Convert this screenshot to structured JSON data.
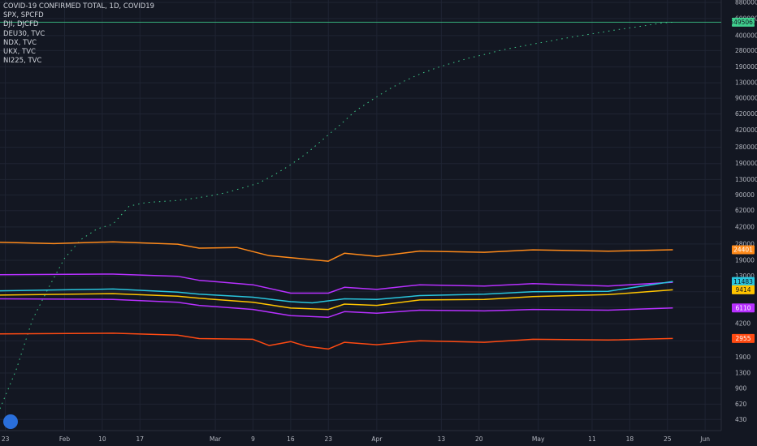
{
  "legend": {
    "items": [
      "COVID-19 CONFIRMED TOTAL, 1D, COVID19",
      "SPX, SPCFD",
      "DJI, DJCFD",
      "DEU30, TVC",
      "NDX, TVC",
      "UKX, TVC",
      "NI225, TVC"
    ]
  },
  "chart_data": {
    "type": "line",
    "title": "COVID-19 CONFIRMED TOTAL, 1D, COVID19",
    "x_range": [
      "2020-01-22",
      "2020-06-04"
    ],
    "x_ticks": [
      "23",
      "Feb",
      "10",
      "17",
      "Mar",
      "9",
      "16",
      "23",
      "Apr",
      "13",
      "20",
      "May",
      "11",
      "18",
      "25",
      "Jun"
    ],
    "y_scale": "log",
    "y_ticks": [
      "8800000",
      "6000000",
      "4000000",
      "2800000",
      "1900000",
      "1300000",
      "900000",
      "620000",
      "420000",
      "280000",
      "190000",
      "130000",
      "90000",
      "62000",
      "42000",
      "28000",
      "19000",
      "13000",
      "9000",
      "6200",
      "4200",
      "2800",
      "1900",
      "1300",
      "900",
      "620",
      "430"
    ],
    "grid": true,
    "horizontal_ref_line": 5495061,
    "series": [
      {
        "name": "COVID-19 CONFIRMED TOTAL, 1D, COVID19",
        "color": "#3fcf8e",
        "style": "dashed",
        "last_label": "5495061",
        "points": [
          [
            "2020-01-22",
            555
          ],
          [
            "2020-01-25",
            1400
          ],
          [
            "2020-01-28",
            4600
          ],
          [
            "2020-01-31",
            9800
          ],
          [
            "2020-02-03",
            20000
          ],
          [
            "2020-02-06",
            31000
          ],
          [
            "2020-02-09",
            40000
          ],
          [
            "2020-02-12",
            45000
          ],
          [
            "2020-02-15",
            69000
          ],
          [
            "2020-02-18",
            75000
          ],
          [
            "2020-02-21",
            77000
          ],
          [
            "2020-02-24",
            79000
          ],
          [
            "2020-02-27",
            83000
          ],
          [
            "2020-03-01",
            88000
          ],
          [
            "2020-03-04",
            95000
          ],
          [
            "2020-03-07",
            106000
          ],
          [
            "2020-03-10",
            119000
          ],
          [
            "2020-03-13",
            146000
          ],
          [
            "2020-03-16",
            185000
          ],
          [
            "2020-03-19",
            243000
          ],
          [
            "2020-03-22",
            337000
          ],
          [
            "2020-03-25",
            468000
          ],
          [
            "2020-03-28",
            663000
          ],
          [
            "2020-03-31",
            858000
          ],
          [
            "2020-04-03",
            1095000
          ],
          [
            "2020-04-06",
            1346000
          ],
          [
            "2020-04-09",
            1600000
          ],
          [
            "2020-04-12",
            1846000
          ],
          [
            "2020-04-15",
            2080000
          ],
          [
            "2020-04-18",
            2330000
          ],
          [
            "2020-04-21",
            2550000
          ],
          [
            "2020-04-24",
            2810000
          ],
          [
            "2020-04-27",
            3040000
          ],
          [
            "2020-04-30",
            3260000
          ],
          [
            "2020-05-03",
            3500000
          ],
          [
            "2020-05-06",
            3750000
          ],
          [
            "2020-05-09",
            4000000
          ],
          [
            "2020-05-12",
            4260000
          ],
          [
            "2020-05-15",
            4540000
          ],
          [
            "2020-05-18",
            4800000
          ],
          [
            "2020-05-21",
            5080000
          ],
          [
            "2020-05-24",
            5400000
          ],
          [
            "2020-05-26",
            5495061
          ]
        ]
      },
      {
        "name": "DJI, DJCFD",
        "color": "#ff8a1a",
        "last_label": "24401",
        "points": [
          [
            "2020-01-22",
            29200
          ],
          [
            "2020-02-01",
            28300
          ],
          [
            "2020-02-12",
            29500
          ],
          [
            "2020-02-24",
            27900
          ],
          [
            "2020-02-28",
            25400
          ],
          [
            "2020-03-06",
            25800
          ],
          [
            "2020-03-12",
            21200
          ],
          [
            "2020-03-16",
            20200
          ],
          [
            "2020-03-23",
            18600
          ],
          [
            "2020-03-26",
            22500
          ],
          [
            "2020-04-01",
            20900
          ],
          [
            "2020-04-09",
            23700
          ],
          [
            "2020-04-21",
            23000
          ],
          [
            "2020-04-30",
            24400
          ],
          [
            "2020-05-14",
            23600
          ],
          [
            "2020-05-26",
            24401
          ]
        ]
      },
      {
        "name": "DEU30, TVC",
        "color": "#b730ff",
        "last_label": "11271",
        "points": [
          [
            "2020-01-22",
            13500
          ],
          [
            "2020-02-12",
            13700
          ],
          [
            "2020-02-24",
            13000
          ],
          [
            "2020-02-28",
            11800
          ],
          [
            "2020-03-09",
            10600
          ],
          [
            "2020-03-16",
            8700
          ],
          [
            "2020-03-23",
            8700
          ],
          [
            "2020-03-26",
            10000
          ],
          [
            "2020-04-01",
            9500
          ],
          [
            "2020-04-09",
            10600
          ],
          [
            "2020-04-21",
            10300
          ],
          [
            "2020-04-30",
            10900
          ],
          [
            "2020-05-14",
            10300
          ],
          [
            "2020-05-26",
            11271
          ]
        ]
      },
      {
        "name": "NDX, TVC",
        "color": "#29c5dd",
        "last_label": "11483",
        "points": [
          [
            "2020-01-22",
            9200
          ],
          [
            "2020-02-12",
            9600
          ],
          [
            "2020-02-24",
            8900
          ],
          [
            "2020-02-28",
            8500
          ],
          [
            "2020-03-09",
            7900
          ],
          [
            "2020-03-16",
            7100
          ],
          [
            "2020-03-20",
            6900
          ],
          [
            "2020-03-26",
            7600
          ],
          [
            "2020-04-01",
            7500
          ],
          [
            "2020-04-09",
            8200
          ],
          [
            "2020-04-21",
            8500
          ],
          [
            "2020-04-30",
            9000
          ],
          [
            "2020-05-14",
            9100
          ],
          [
            "2020-05-26",
            11483
          ]
        ]
      },
      {
        "name": "SPX, SPCFD",
        "color": "#ffc400",
        "last_label": "9414",
        "points": [
          [
            "2020-01-22",
            8300
          ],
          [
            "2020-02-12",
            8600
          ],
          [
            "2020-02-24",
            8100
          ],
          [
            "2020-02-28",
            7700
          ],
          [
            "2020-03-09",
            7000
          ],
          [
            "2020-03-16",
            6100
          ],
          [
            "2020-03-23",
            5900
          ],
          [
            "2020-03-26",
            6700
          ],
          [
            "2020-04-01",
            6500
          ],
          [
            "2020-04-09",
            7400
          ],
          [
            "2020-04-21",
            7500
          ],
          [
            "2020-04-30",
            8000
          ],
          [
            "2020-05-14",
            8400
          ],
          [
            "2020-05-26",
            9414
          ]
        ]
      },
      {
        "name": "UKX, TVC",
        "color": "#b730ff",
        "last_label": "6110",
        "points": [
          [
            "2020-01-22",
            7600
          ],
          [
            "2020-02-12",
            7500
          ],
          [
            "2020-02-24",
            7000
          ],
          [
            "2020-02-28",
            6500
          ],
          [
            "2020-03-09",
            5900
          ],
          [
            "2020-03-16",
            5100
          ],
          [
            "2020-03-23",
            4900
          ],
          [
            "2020-03-26",
            5600
          ],
          [
            "2020-04-01",
            5400
          ],
          [
            "2020-04-09",
            5800
          ],
          [
            "2020-04-21",
            5700
          ],
          [
            "2020-04-30",
            5900
          ],
          [
            "2020-05-14",
            5800
          ],
          [
            "2020-05-26",
            6110
          ]
        ]
      },
      {
        "name": "NI225, TVC",
        "color": "#ff4a12",
        "last_label": "2955",
        "points": [
          [
            "2020-01-22",
            3300
          ],
          [
            "2020-02-12",
            3350
          ],
          [
            "2020-02-24",
            3200
          ],
          [
            "2020-02-28",
            2950
          ],
          [
            "2020-03-09",
            2900
          ],
          [
            "2020-03-12",
            2500
          ],
          [
            "2020-03-16",
            2750
          ],
          [
            "2020-03-19",
            2450
          ],
          [
            "2020-03-23",
            2300
          ],
          [
            "2020-03-26",
            2700
          ],
          [
            "2020-04-01",
            2550
          ],
          [
            "2020-04-09",
            2800
          ],
          [
            "2020-04-21",
            2700
          ],
          [
            "2020-04-30",
            2900
          ],
          [
            "2020-05-14",
            2850
          ],
          [
            "2020-05-26",
            2955
          ]
        ]
      }
    ]
  }
}
